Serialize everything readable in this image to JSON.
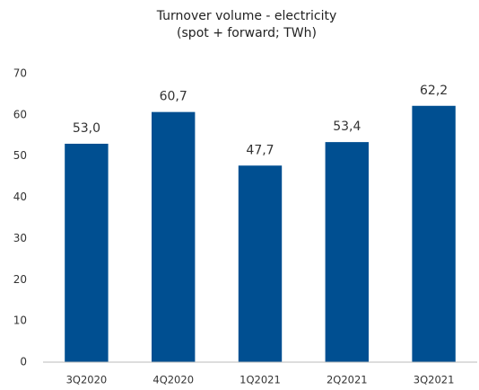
{
  "chart_data": {
    "type": "bar",
    "title": "Turnover volume - electricity",
    "subtitle": "(spot + forward; TWh)",
    "categories": [
      "3Q2020",
      "4Q2020",
      "1Q2021",
      "2Q2021",
      "3Q2021"
    ],
    "values": [
      53.0,
      60.7,
      47.7,
      53.4,
      62.2
    ],
    "value_labels": [
      "53,0",
      "60,7",
      "47,7",
      "53,4",
      "62,2"
    ],
    "color": "#004f91",
    "ylim": [
      0,
      70
    ],
    "yticks": [
      0,
      10,
      20,
      30,
      40,
      50,
      60,
      70
    ],
    "grid": false
  }
}
